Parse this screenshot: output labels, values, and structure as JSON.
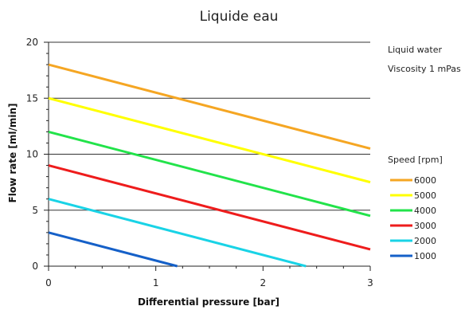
{
  "chart_data": {
    "type": "line",
    "title": "Liquide eau",
    "xlabel": "Differential pressure [bar]",
    "ylabel": "Flow rate [ml/min]",
    "xlim": [
      0,
      3
    ],
    "ylim": [
      0,
      20
    ],
    "xticks": [
      0,
      1,
      2,
      3
    ],
    "yticks": [
      0,
      5,
      10,
      15,
      20
    ],
    "grid": "horizontal",
    "annotations": [
      "Liquid water",
      "Viscosity 1 mPas"
    ],
    "legend_title": "Speed [rpm]",
    "legend_position": "right",
    "series": [
      {
        "name": "6000",
        "color": "#f5a623",
        "x": [
          0,
          3
        ],
        "y": [
          18,
          10.5
        ]
      },
      {
        "name": "5000",
        "color": "#ffff00",
        "x": [
          0,
          3
        ],
        "y": [
          15,
          7.5
        ]
      },
      {
        "name": "4000",
        "color": "#22e34a",
        "x": [
          0,
          3
        ],
        "y": [
          12,
          4.5
        ]
      },
      {
        "name": "3000",
        "color": "#ee1c1c",
        "x": [
          0,
          3
        ],
        "y": [
          9,
          1.5
        ]
      },
      {
        "name": "2000",
        "color": "#19d3e6",
        "x": [
          0,
          2.4
        ],
        "y": [
          6,
          0
        ]
      },
      {
        "name": "1000",
        "color": "#1560c8",
        "x": [
          0,
          1.2
        ],
        "y": [
          3,
          0
        ]
      }
    ]
  }
}
